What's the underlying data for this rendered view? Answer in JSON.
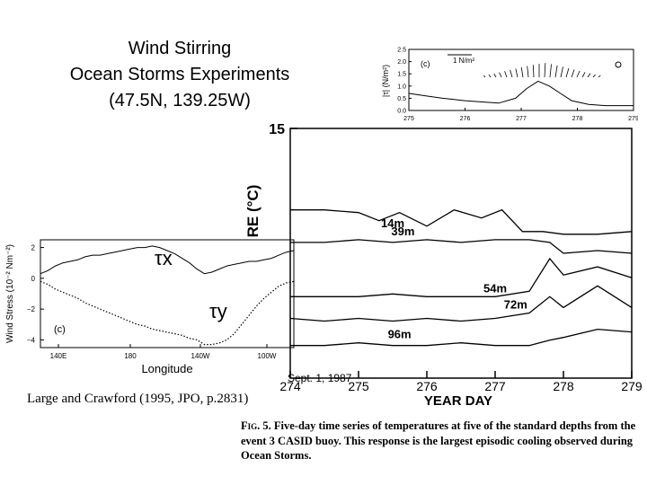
{
  "title": {
    "line1": "Wind Stirring",
    "line2": "Ocean Storms Experiments",
    "line3": "(47.5N, 139.25W)"
  },
  "reference": "Large and Crawford (1995, JPO, p.2831)",
  "date_note": "Sept. 1, 1987",
  "caption": {
    "fig_label": "Fig. 5.",
    "text": "Five-day time series of temperatures at five of the standard depths from the event 3 CASID buoy. This response is the largest episodic cooling observed during Ocean Storms."
  },
  "chart_data": [
    {
      "type": "line",
      "panel_label": "(c)",
      "title": "",
      "xlabel": "Longitude",
      "ylabel": "Wind Stress (10⁻² Nm⁻²)",
      "x_ticks": [
        "140E",
        "180",
        "140W",
        "100W"
      ],
      "y_ticks": [
        "2",
        "0",
        "−2",
        "−4"
      ],
      "ylim": [
        -4.5,
        2.5
      ],
      "series": [
        {
          "name": "τx",
          "style": "solid",
          "x": [
            0,
            8,
            16,
            24,
            32,
            40,
            48,
            56,
            64,
            72,
            80,
            88,
            96,
            104,
            112,
            120,
            128,
            136,
            144,
            152,
            160,
            168,
            176,
            184,
            192,
            200,
            208,
            216,
            224,
            232,
            240,
            248,
            256,
            264,
            272
          ],
          "values": [
            0.3,
            0.5,
            0.8,
            1.0,
            1.1,
            1.2,
            1.4,
            1.5,
            1.5,
            1.6,
            1.7,
            1.8,
            1.9,
            2.0,
            2.0,
            2.1,
            2.0,
            1.8,
            1.6,
            1.3,
            1.0,
            0.6,
            0.3,
            0.4,
            0.6,
            0.8,
            0.9,
            1.0,
            1.1,
            1.1,
            1.2,
            1.3,
            1.5,
            1.7,
            1.8
          ]
        },
        {
          "name": "τy",
          "style": "dotted",
          "x": [
            0,
            8,
            16,
            24,
            32,
            40,
            48,
            56,
            64,
            72,
            80,
            88,
            96,
            104,
            112,
            120,
            128,
            136,
            144,
            152,
            160,
            168,
            176,
            184,
            192,
            200,
            208,
            216,
            224,
            232,
            240,
            248,
            256,
            264,
            272
          ],
          "values": [
            -0.2,
            -0.4,
            -0.7,
            -0.9,
            -1.1,
            -1.3,
            -1.6,
            -1.8,
            -2.0,
            -2.2,
            -2.4,
            -2.6,
            -2.8,
            -3.0,
            -3.1,
            -3.3,
            -3.4,
            -3.5,
            -3.6,
            -3.7,
            -3.9,
            -4.0,
            -4.3,
            -4.3,
            -4.2,
            -4.0,
            -3.6,
            -3.0,
            -2.4,
            -1.8,
            -1.3,
            -0.9,
            -0.5,
            -0.3,
            -0.2
          ]
        }
      ]
    },
    {
      "type": "line",
      "panel_label": "(c)",
      "scale_label": "1 N/m²",
      "ylabel": "|τ| (N/m²)",
      "y_ticks": [
        "2.5",
        "2.0",
        "1.5",
        "1.0",
        "0.5",
        "0.0"
      ],
      "x_ticks": [
        "275",
        "276",
        "277",
        "278",
        "279"
      ],
      "ylim": [
        0,
        2.5
      ],
      "xlim": [
        275,
        279
      ],
      "series": [
        {
          "x": [
            275,
            275.3,
            275.6,
            276,
            276.3,
            276.6,
            276.9,
            277.1,
            277.3,
            277.5,
            277.7,
            277.9,
            278.2,
            278.5,
            279
          ],
          "values": [
            0.7,
            0.6,
            0.5,
            0.4,
            0.35,
            0.3,
            0.5,
            0.9,
            1.2,
            1.0,
            0.7,
            0.4,
            0.25,
            0.2,
            0.2
          ]
        }
      ]
    },
    {
      "type": "line",
      "xlabel": "YEAR DAY",
      "ylabel": "RE (°C)",
      "x_ticks": [
        "274",
        "275",
        "276",
        "277",
        "278",
        "279"
      ],
      "y_ticks": [
        "15"
      ],
      "xlim": [
        274,
        279
      ],
      "series": [
        {
          "name": "14m",
          "x": [
            274,
            274.5,
            275,
            275.3,
            275.6,
            276,
            276.4,
            276.8,
            277.1,
            277.4,
            277.7,
            278,
            278.5,
            279
          ],
          "values": [
            13.5,
            13.5,
            13.45,
            13.3,
            13.45,
            13.2,
            13.5,
            13.35,
            13.5,
            13.1,
            13.1,
            13.05,
            13.05,
            13.1
          ]
        },
        {
          "name": "39m",
          "x": [
            274,
            274.5,
            275,
            275.5,
            276,
            276.5,
            277,
            277.5,
            277.8,
            278,
            278.5,
            279
          ],
          "values": [
            12.9,
            12.9,
            12.95,
            12.9,
            12.95,
            12.9,
            12.95,
            12.95,
            12.9,
            12.7,
            12.75,
            12.7
          ]
        },
        {
          "name": "54m",
          "x": [
            274,
            274.5,
            275,
            275.5,
            276,
            276.5,
            277,
            277.5,
            277.8,
            278,
            278.5,
            279
          ],
          "values": [
            11.9,
            11.9,
            11.9,
            11.95,
            11.9,
            11.9,
            11.9,
            12.0,
            12.6,
            12.3,
            12.45,
            12.25
          ]
        },
        {
          "name": "72m",
          "x": [
            274,
            274.5,
            275,
            275.5,
            276,
            276.5,
            277,
            277.5,
            277.8,
            278,
            278.5,
            279
          ],
          "values": [
            11.5,
            11.45,
            11.5,
            11.45,
            11.5,
            11.45,
            11.5,
            11.6,
            11.9,
            11.7,
            12.1,
            11.7
          ]
        },
        {
          "name": "96m",
          "x": [
            274,
            274.5,
            275,
            275.5,
            276,
            276.5,
            277,
            277.5,
            277.8,
            278,
            278.5,
            279
          ],
          "values": [
            11.0,
            11.0,
            11.05,
            11.0,
            11.0,
            11.05,
            11.0,
            11.0,
            11.1,
            11.15,
            11.3,
            11.25
          ]
        }
      ]
    }
  ],
  "colors": {
    "ink": "#000000",
    "background": "#ffffff"
  }
}
